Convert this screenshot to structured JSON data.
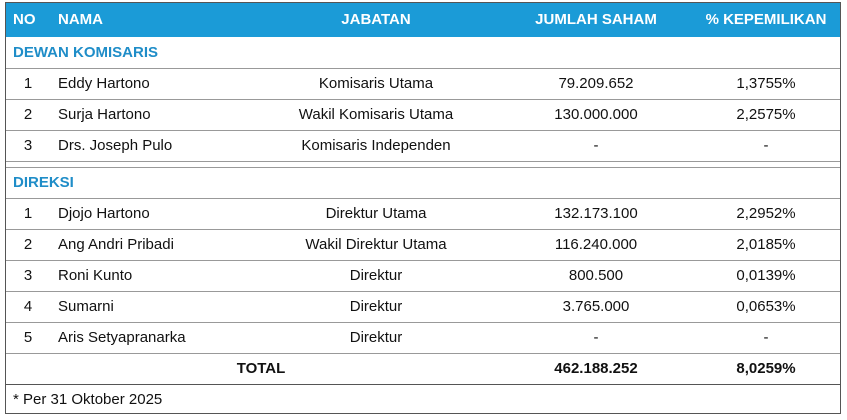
{
  "header": {
    "columns": [
      "NO",
      "NAMA",
      "JABATAN",
      "JUMLAH SAHAM",
      "% KEPEMILIKAN"
    ]
  },
  "sections": [
    {
      "title": "DEWAN KOMISARIS",
      "rows": [
        [
          "1",
          "Eddy Hartono",
          "Komisaris Utama",
          "79.209.652",
          "1,3755%"
        ],
        [
          "2",
          "Surja Hartono",
          "Wakil Komisaris Utama",
          "130.000.000",
          "2,2575%"
        ],
        [
          "3",
          "Drs. Joseph Pulo",
          "Komisaris Independen",
          "-",
          "-"
        ]
      ]
    },
    {
      "title": "DIREKSI",
      "rows": [
        [
          "1",
          "Djojo Hartono",
          "Direktur Utama",
          "132.173.100",
          "2,2952%"
        ],
        [
          "2",
          "Ang Andri Pribadi",
          "Wakil Direktur Utama",
          "116.240.000",
          "2,0185%"
        ],
        [
          "3",
          "Roni Kunto",
          "Direktur",
          "800.500",
          "0,0139%"
        ],
        [
          "4",
          "Sumarni",
          "Direktur",
          "3.765.000",
          "0,0653%"
        ],
        [
          "5",
          "Aris Setyapranarka",
          "Direktur",
          "-",
          "-"
        ]
      ]
    }
  ],
  "total": {
    "label": "TOTAL",
    "jumlah_saham": "462.188.252",
    "kepemilikan": "8,0259%"
  },
  "footnote": "* Per 31 Oktober 2025"
}
